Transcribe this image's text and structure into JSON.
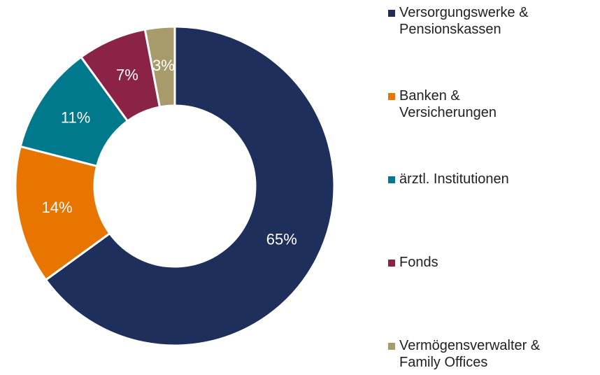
{
  "chart_data": {
    "type": "donut",
    "categories": [
      "Versorgungswerke &\nPensionskassen",
      "Banken &\nVersicherungen",
      "ärztl. Institutionen",
      "Fonds",
      "Vermögensverwalter &\nFamily Offices"
    ],
    "values": [
      65,
      14,
      11,
      7,
      3
    ],
    "value_labels": [
      "65%",
      "14%",
      "11%",
      "7%",
      "3%"
    ],
    "colors": [
      "#1f2f5c",
      "#e87500",
      "#00798c",
      "#8b2346",
      "#a89b6b"
    ],
    "legend": "right"
  }
}
